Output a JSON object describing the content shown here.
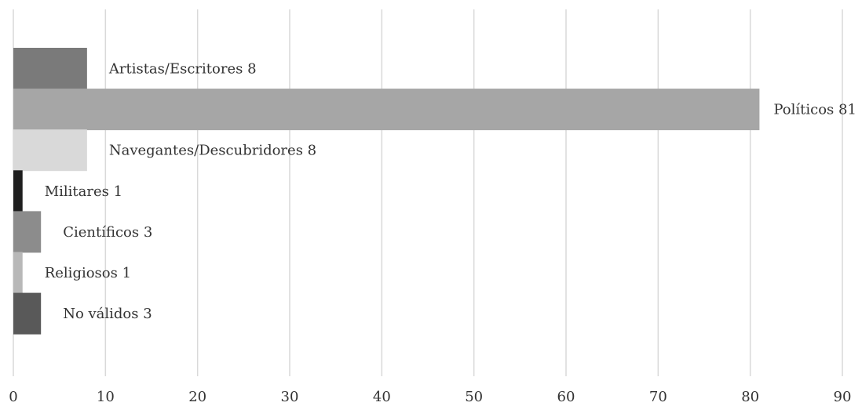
{
  "chart_data": {
    "type": "bar",
    "orientation": "horizontal",
    "title": "",
    "xlabel": "",
    "ylabel": "",
    "xlim": [
      0,
      90
    ],
    "x_ticks": [
      "0",
      "10",
      "20",
      "30",
      "40",
      "50",
      "60",
      "70",
      "80",
      "90"
    ],
    "grid": "vertical",
    "legend": "none",
    "bars": [
      {
        "category": "Artistas/Escritores",
        "value": 8,
        "label": "Artistas/Escritores 8",
        "color": "#7a7a7a"
      },
      {
        "category": "Políticos",
        "value": 81,
        "label": "Políticos 81",
        "color": "#a6a6a6"
      },
      {
        "category": "Navegantes/Descubridores",
        "value": 8,
        "label": "Navegantes/Descubridores 8",
        "color": "#d9d9d9"
      },
      {
        "category": "Militares",
        "value": 1,
        "label": "Militares 1",
        "color": "#1e1e1e"
      },
      {
        "category": "Científicos",
        "value": 3,
        "label": "Científicos 3",
        "color": "#8c8c8c"
      },
      {
        "category": "Religiosos",
        "value": 1,
        "label": "Religiosos 1",
        "color": "#b8b8b8"
      },
      {
        "category": "No válidos",
        "value": 3,
        "label": "No válidos 3",
        "color": "#595959"
      }
    ]
  }
}
